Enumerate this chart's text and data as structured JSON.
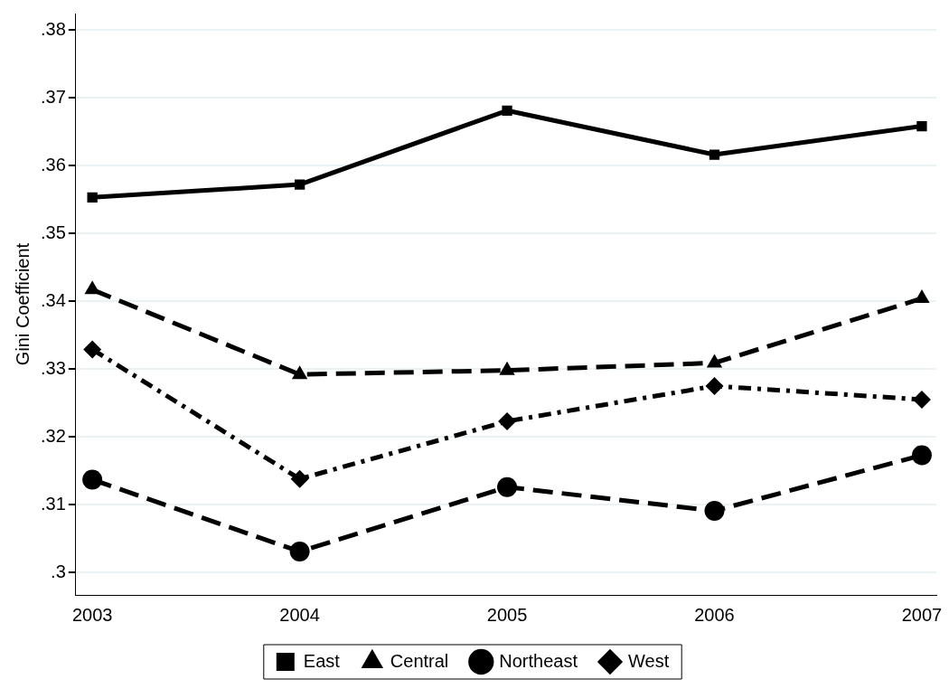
{
  "chart_data": {
    "type": "line",
    "ylabel": "Gini Coefficient",
    "x": [
      2003,
      2004,
      2005,
      2006,
      2007
    ],
    "xlim": [
      2002.92,
      2007.07
    ],
    "xticks": [
      2003,
      2004,
      2005,
      2006,
      2007
    ],
    "ylim": [
      0.2967,
      0.3824
    ],
    "yticks": [
      {
        "value": 0.3,
        "label": ".3"
      },
      {
        "value": 0.31,
        "label": ".31"
      },
      {
        "value": 0.32,
        "label": ".32"
      },
      {
        "value": 0.33,
        "label": ".33"
      },
      {
        "value": 0.34,
        "label": ".34"
      },
      {
        "value": 0.35,
        "label": ".35"
      },
      {
        "value": 0.36,
        "label": ".36"
      },
      {
        "value": 0.37,
        "label": ".37"
      },
      {
        "value": 0.38,
        "label": ".38"
      }
    ],
    "grid": "y",
    "legend": "bottom",
    "series": [
      {
        "name": "East",
        "color": "#000000",
        "marker": "square",
        "line_style": "solid",
        "values": [
          0.3553,
          0.3572,
          0.3681,
          0.3616,
          0.3658
        ]
      },
      {
        "name": "Central",
        "color": "#000000",
        "marker": "triangle",
        "line_style": "dashed",
        "values": [
          0.3417,
          0.3292,
          0.3298,
          0.3309,
          0.3404
        ]
      },
      {
        "name": "Northeast",
        "color": "#000000",
        "marker": "circle",
        "line_style": "dashed",
        "values": [
          0.3137,
          0.3031,
          0.3126,
          0.3091,
          0.3173
        ]
      },
      {
        "name": "West",
        "color": "#000000",
        "marker": "diamond",
        "line_style": "dashdot",
        "values": [
          0.3329,
          0.3138,
          0.3223,
          0.3275,
          0.3255
        ]
      }
    ]
  }
}
